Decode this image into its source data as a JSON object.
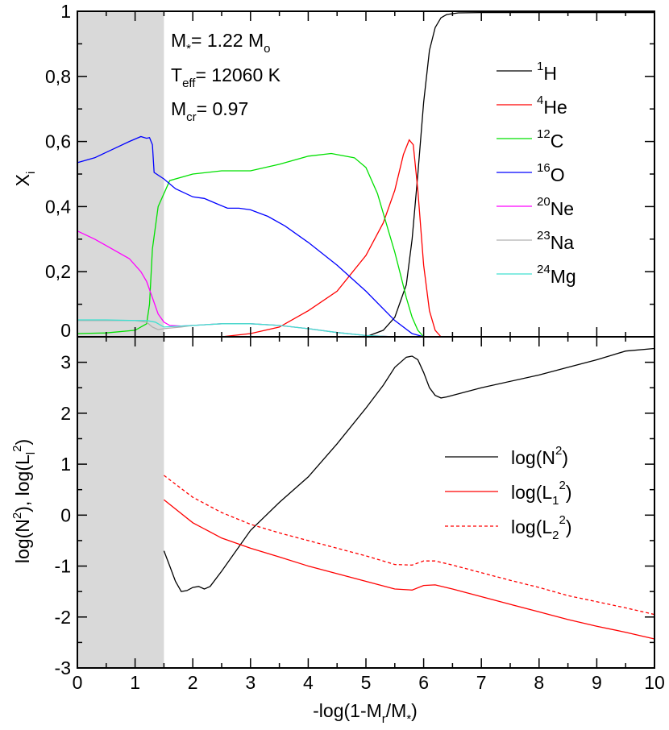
{
  "chart_data": [
    {
      "type": "line",
      "panel": "top",
      "ylabel": "X",
      "ylabel_sub": "i",
      "xlim": [
        0,
        10
      ],
      "ylim": [
        0,
        1
      ],
      "yticks": [
        "0",
        "0,2",
        "0,4",
        "0,6",
        "0,8",
        "1"
      ],
      "shaded_region_x": [
        0,
        1.5
      ],
      "annotations": [
        {
          "main": "M",
          "sub": "*",
          "rest": "= 1.22 M",
          "sub2": "o"
        },
        {
          "main": "T",
          "sub": "eff",
          "rest": "= 12060 K"
        },
        {
          "main": "M",
          "sub": "cr",
          "rest": "= 0.97"
        }
      ],
      "series": [
        {
          "sup": "1",
          "name": "H",
          "color": "#000000",
          "x": [
            5.0,
            5.3,
            5.5,
            5.7,
            5.8,
            5.9,
            6.0,
            6.1,
            6.2,
            6.3,
            6.4,
            6.6,
            7.0,
            10.0
          ],
          "y": [
            0.0,
            0.02,
            0.06,
            0.16,
            0.3,
            0.5,
            0.72,
            0.88,
            0.95,
            0.98,
            0.99,
            0.995,
            0.996,
            0.996
          ]
        },
        {
          "sup": "4",
          "name": "He",
          "color": "#ff0000",
          "x": [
            2.5,
            3.0,
            3.5,
            4.0,
            4.5,
            5.0,
            5.3,
            5.5,
            5.65,
            5.75,
            5.82,
            5.9,
            6.0,
            6.1,
            6.2,
            6.3
          ],
          "y": [
            0.0,
            0.01,
            0.03,
            0.08,
            0.14,
            0.25,
            0.35,
            0.45,
            0.56,
            0.605,
            0.59,
            0.45,
            0.22,
            0.08,
            0.02,
            0.0
          ]
        },
        {
          "sup": "12",
          "name": "C",
          "color": "#00e000",
          "x": [
            0.0,
            0.5,
            1.0,
            1.2,
            1.25,
            1.3,
            1.4,
            1.6,
            2.0,
            2.5,
            3.0,
            3.5,
            4.0,
            4.4,
            4.8,
            5.0,
            5.2,
            5.4,
            5.5,
            5.6,
            5.7,
            5.8,
            5.9,
            6.0
          ],
          "y": [
            0.01,
            0.012,
            0.02,
            0.04,
            0.1,
            0.27,
            0.4,
            0.48,
            0.5,
            0.51,
            0.51,
            0.53,
            0.555,
            0.563,
            0.55,
            0.52,
            0.44,
            0.32,
            0.26,
            0.19,
            0.12,
            0.06,
            0.02,
            0.0
          ]
        },
        {
          "sup": "16",
          "name": "O",
          "color": "#0000ff",
          "x": [
            0.0,
            0.3,
            0.6,
            0.9,
            1.1,
            1.2,
            1.25,
            1.3,
            1.33,
            1.5,
            1.7,
            2.0,
            2.2,
            2.4,
            2.6,
            2.8,
            3.0,
            3.3,
            3.6,
            4.0,
            4.5,
            5.0,
            5.5,
            5.8,
            6.0
          ],
          "y": [
            0.535,
            0.55,
            0.575,
            0.6,
            0.615,
            0.61,
            0.612,
            0.59,
            0.505,
            0.485,
            0.455,
            0.43,
            0.425,
            0.41,
            0.395,
            0.395,
            0.39,
            0.37,
            0.34,
            0.29,
            0.22,
            0.14,
            0.05,
            0.01,
            0.0
          ]
        },
        {
          "sup": "20",
          "name": "Ne",
          "color": "#ff00ff",
          "x": [
            0.0,
            0.3,
            0.6,
            0.9,
            1.1,
            1.2,
            1.3,
            1.4,
            1.5,
            1.6,
            1.8,
            2.0,
            2.5,
            3.0,
            3.5,
            4.0,
            4.5,
            5.0,
            5.5
          ],
          "y": [
            0.325,
            0.3,
            0.27,
            0.24,
            0.2,
            0.17,
            0.12,
            0.07,
            0.045,
            0.035,
            0.033,
            0.035,
            0.04,
            0.04,
            0.035,
            0.025,
            0.013,
            0.004,
            0.0
          ]
        },
        {
          "sup": "23",
          "name": "Na",
          "color": "#b0b0b0",
          "x": [
            0.0,
            0.5,
            1.0,
            1.2,
            1.3,
            1.4,
            1.5,
            1.8,
            2.0,
            2.5,
            3.0,
            3.5,
            4.0,
            4.5,
            5.0,
            5.5
          ],
          "y": [
            0.05,
            0.05,
            0.05,
            0.045,
            0.03,
            0.022,
            0.025,
            0.03,
            0.035,
            0.04,
            0.04,
            0.035,
            0.025,
            0.013,
            0.004,
            0.0
          ]
        },
        {
          "sup": "24",
          "name": "Mg",
          "color": "#40e0d0",
          "x": [
            0.0,
            0.5,
            1.0,
            1.2,
            1.35,
            1.5,
            2.0,
            2.5,
            3.0,
            3.5,
            4.0,
            4.5,
            5.0,
            5.5
          ],
          "y": [
            0.052,
            0.052,
            0.05,
            0.05,
            0.045,
            0.03,
            0.035,
            0.04,
            0.04,
            0.035,
            0.025,
            0.013,
            0.004,
            0.0
          ]
        }
      ]
    },
    {
      "type": "line",
      "panel": "bottom",
      "xlabel": "-log(1-M",
      "xlabel_sub": "r",
      "xlabel_rest": "/M",
      "xlabel_sub2": "*",
      "xlabel_end": ")",
      "ylabel": "log(N²), log(L_l²)",
      "xlim": [
        0,
        10
      ],
      "ylim": [
        -3,
        3.5
      ],
      "xticks": [
        "0",
        "1",
        "2",
        "3",
        "4",
        "5",
        "6",
        "7",
        "8",
        "9",
        "10"
      ],
      "yticks": [
        "-3",
        "-2",
        "-1",
        "0",
        "1",
        "2",
        "3"
      ],
      "shaded_region_x": [
        0,
        1.5
      ],
      "series": [
        {
          "name": "log(N",
          "sup": "2",
          "tail": ")",
          "color": "#000000",
          "dash": "",
          "x": [
            1.5,
            1.6,
            1.7,
            1.8,
            1.9,
            2.0,
            2.1,
            2.2,
            2.3,
            2.5,
            3.0,
            3.5,
            4.0,
            4.5,
            5.0,
            5.3,
            5.5,
            5.7,
            5.8,
            5.9,
            6.0,
            6.1,
            6.2,
            6.3,
            6.4,
            7.0,
            8.0,
            8.5,
            9.0,
            9.5,
            10.0
          ],
          "y": [
            -0.7,
            -1.0,
            -1.3,
            -1.5,
            -1.48,
            -1.42,
            -1.4,
            -1.45,
            -1.4,
            -1.1,
            -0.3,
            0.25,
            0.75,
            1.4,
            2.1,
            2.55,
            2.9,
            3.1,
            3.12,
            3.05,
            2.8,
            2.5,
            2.35,
            2.3,
            2.32,
            2.5,
            2.75,
            2.9,
            3.05,
            3.22,
            3.27
          ]
        },
        {
          "name": "log(L",
          "sub": "1",
          "sup": "2",
          "tail": ")",
          "color": "#ff0000",
          "dash": "",
          "x": [
            1.5,
            2.0,
            2.5,
            3.0,
            3.5,
            4.0,
            4.5,
            5.0,
            5.5,
            5.8,
            6.0,
            6.2,
            6.5,
            7.0,
            7.5,
            8.0,
            8.5,
            9.0,
            9.5,
            10.0
          ],
          "y": [
            0.3,
            -0.15,
            -0.45,
            -0.65,
            -0.82,
            -1.0,
            -1.15,
            -1.3,
            -1.45,
            -1.47,
            -1.38,
            -1.37,
            -1.45,
            -1.6,
            -1.75,
            -1.9,
            -2.05,
            -2.18,
            -2.3,
            -2.43
          ]
        },
        {
          "name": "log(L",
          "sub": "2",
          "sup": "2",
          "tail": ")",
          "color": "#ff0000",
          "dash": "4,3",
          "x": [
            1.5,
            2.0,
            2.5,
            3.0,
            3.5,
            4.0,
            4.5,
            5.0,
            5.5,
            5.8,
            6.0,
            6.2,
            6.5,
            7.0,
            7.5,
            8.0,
            8.5,
            9.0,
            9.5,
            10.0
          ],
          "y": [
            0.78,
            0.35,
            0.05,
            -0.18,
            -0.35,
            -0.5,
            -0.65,
            -0.8,
            -0.97,
            -0.98,
            -0.9,
            -0.9,
            -0.98,
            -1.13,
            -1.28,
            -1.42,
            -1.58,
            -1.7,
            -1.82,
            -1.95
          ]
        }
      ]
    }
  ]
}
